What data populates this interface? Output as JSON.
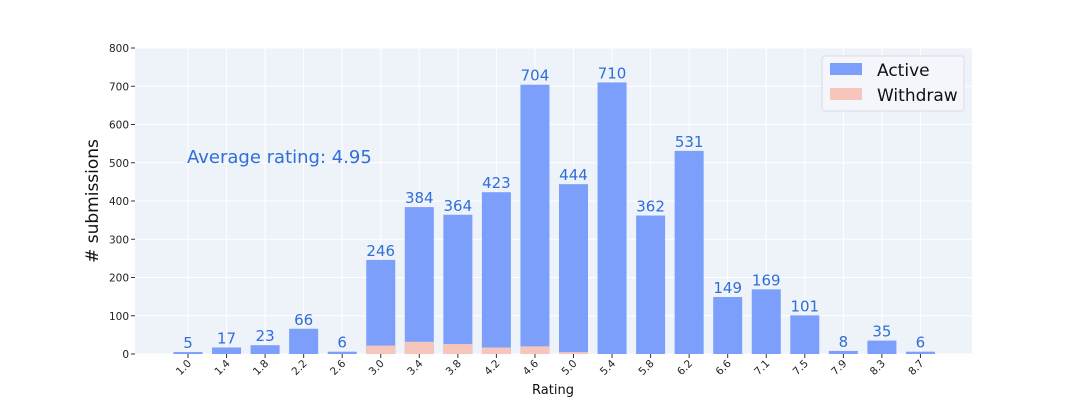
{
  "chart_data": {
    "type": "bar",
    "stacked": true,
    "categories": [
      "1.0",
      "1.4",
      "1.8",
      "2.2",
      "2.6",
      "3.0",
      "3.4",
      "3.8",
      "4.2",
      "4.6",
      "5.0",
      "5.4",
      "5.8",
      "6.2",
      "6.6",
      "7.1",
      "7.5",
      "7.9",
      "8.3",
      "8.7"
    ],
    "series": [
      {
        "name": "Active",
        "values": [
          5,
          17,
          23,
          66,
          6,
          224,
          352,
          338,
          406,
          684,
          439,
          710,
          362,
          531,
          149,
          169,
          101,
          8,
          35,
          6
        ]
      },
      {
        "name": "Withdraw",
        "values": [
          0,
          0,
          0,
          0,
          0,
          22,
          32,
          26,
          17,
          20,
          5,
          0,
          0,
          0,
          0,
          0,
          0,
          0,
          0,
          0
        ]
      }
    ],
    "totals": [
      5,
      17,
      23,
      66,
      6,
      246,
      384,
      364,
      423,
      704,
      444,
      710,
      362,
      531,
      149,
      169,
      101,
      8,
      35,
      6
    ],
    "xlabel": "Rating",
    "ylabel": "# submissions",
    "ylim": [
      0,
      800
    ],
    "yticks": [
      0,
      100,
      200,
      300,
      400,
      500,
      600,
      700,
      800
    ],
    "annotation": "Average rating: 4.95",
    "legend": {
      "position": "top-right",
      "entries": [
        "Active",
        "Withdraw"
      ]
    },
    "grid": true,
    "colors": {
      "Active": "#7b9ffb",
      "Withdraw": "#f6c5bb",
      "labels": "#2f6fd8",
      "background": "#eef2f9"
    }
  }
}
